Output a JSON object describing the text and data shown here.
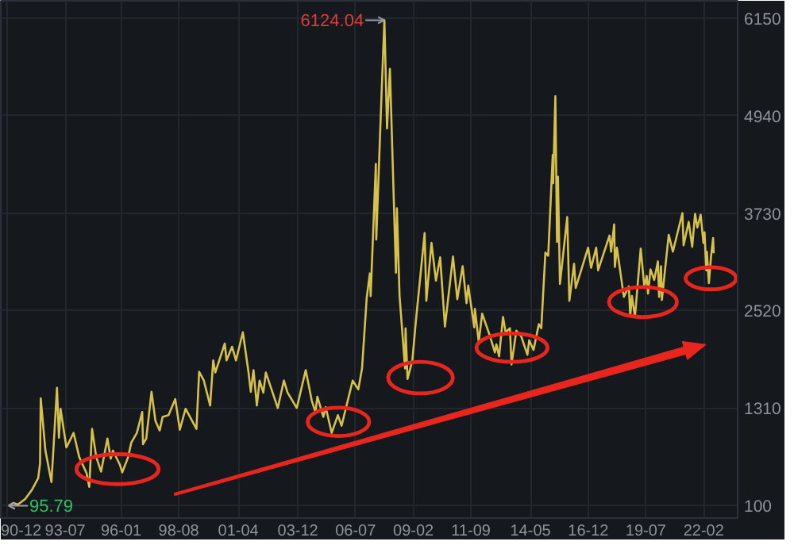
{
  "chart_data": {
    "type": "line",
    "color": "#d6c24a",
    "x": [
      "1990-12-19",
      "1991-03-01",
      "1991-05-17",
      "1991-09-15",
      "1991-12-31",
      "1992-04-15",
      "1992-05-15",
      "1992-05-26",
      "1992-07-10",
      "1992-08-11",
      "1992-11-17",
      "1992-12-20",
      "1993-02-16",
      "1993-03-20",
      "1993-04-15",
      "1993-07-20",
      "1993-11-15",
      "1994-02-15",
      "1994-06-15",
      "1994-07-29",
      "1994-09-13",
      "1994-11-20",
      "1995-02-07",
      "1995-05-22",
      "1995-07-15",
      "1995-08-20",
      "1995-12-15",
      "1996-01-19",
      "1996-04-25",
      "1996-06-15",
      "1996-09-15",
      "1996-12-11",
      "1996-12-24",
      "1997-02-15",
      "1997-05-12",
      "1997-07-15",
      "1997-09-23",
      "1997-11-10",
      "1998-02-15",
      "1998-06-04",
      "1998-08-18",
      "1998-11-20",
      "1999-05-17",
      "1999-06-30",
      "1999-09-15",
      "1999-12-27",
      "2000-02-15",
      "2000-03-20",
      "2000-08-22",
      "2000-09-20",
      "2000-12-20",
      "2001-02-22",
      "2001-06-14",
      "2001-09-15",
      "2001-10-22",
      "2001-12-05",
      "2002-01-29",
      "2002-03-15",
      "2002-05-15",
      "2002-06-25",
      "2003-01-06",
      "2003-04-16",
      "2003-06-15",
      "2003-11-13",
      "2004-04-07",
      "2004-07-15",
      "2004-09-13",
      "2004-10-15",
      "2005-01-20",
      "2005-02-28",
      "2005-06-06",
      "2005-09-15",
      "2005-11-15",
      "2006-05-15",
      "2006-08-15",
      "2006-10-15",
      "2006-12-31",
      "2007-02-20",
      "2007-03-05",
      "2007-05-29",
      "2007-06-05",
      "2007-08-30",
      "2007-10-16",
      "2007-11-28",
      "2008-01-14",
      "2008-04-22",
      "2008-05-07",
      "2008-06-20",
      "2008-09-18",
      "2008-09-26",
      "2008-10-28",
      "2009-01-15",
      "2009-03-15",
      "2009-08-04",
      "2009-09-01",
      "2009-11-24",
      "2010-02-05",
      "2010-04-15",
      "2010-07-02",
      "2010-11-11",
      "2011-01-20",
      "2011-04-18",
      "2011-06-20",
      "2011-07-18",
      "2011-10-24",
      "2011-11-04",
      "2012-01-06",
      "2012-03-02",
      "2012-06-30",
      "2012-09-26",
      "2012-10-20",
      "2012-12-04",
      "2013-02-06",
      "2013-03-20",
      "2013-05-30",
      "2013-06-25",
      "2013-09-12",
      "2013-11-30",
      "2014-03-12",
      "2014-04-10",
      "2014-06-20",
      "2014-09-15",
      "2014-10-25",
      "2014-12-31",
      "2015-02-15",
      "2015-04-30",
      "2015-05-07",
      "2015-06-12",
      "2015-07-09",
      "2015-07-24",
      "2015-08-26",
      "2015-12-23",
      "2016-01-27",
      "2016-04-13",
      "2016-05-10",
      "2016-11-29",
      "2017-01-16",
      "2017-04-10",
      "2017-05-11",
      "2017-11-14",
      "2017-12-10",
      "2018-01-29",
      "2018-02-09",
      "2018-03-15",
      "2018-07-06",
      "2018-09-26",
      "2018-10-19",
      "2018-11-15",
      "2019-01-04",
      "2019-04-08",
      "2019-06-05",
      "2019-07-15",
      "2019-08-06",
      "2019-09-15",
      "2019-11-15",
      "2020-01-14",
      "2020-02-03",
      "2020-03-05",
      "2020-03-19",
      "2020-07-09",
      "2020-09-15",
      "2021-02-18",
      "2021-03-09",
      "2021-06-01",
      "2021-07-28",
      "2021-09-13",
      "2021-10-20",
      "2021-12-13",
      "2022-01-28",
      "2022-02-15",
      "2022-03-15",
      "2022-03-25",
      "2022-04-27",
      "2022-06-01",
      "2022-07-05",
      "2022-07-15"
    ],
    "values": [
      95.79,
      130,
      110,
      180,
      290,
      440,
      620,
      1430,
      1050,
      780,
      390,
      800,
      1560,
      940,
      1300,
      820,
      1000,
      700,
      500,
      330,
      1050,
      700,
      520,
      930,
      680,
      780,
      600,
      510,
      700,
      880,
      1000,
      1260,
      860,
      930,
      1510,
      1150,
      1030,
      1200,
      1220,
      1420,
      1040,
      1300,
      1050,
      1760,
      1650,
      1340,
      1900,
      1750,
      2110,
      1900,
      2070,
      1900,
      2250,
      1750,
      1510,
      1780,
      1340,
      1650,
      1500,
      1750,
      1310,
      1650,
      1500,
      1310,
      1780,
      1400,
      1260,
      1450,
      1200,
      1320,
      1000,
      1220,
      1090,
      1650,
      1540,
      1800,
      2680,
      2980,
      2700,
      4340,
      3400,
      5200,
      6124.04,
      4780,
      5520,
      2990,
      3790,
      2700,
      1800,
      2300,
      1670,
      1900,
      2400,
      3480,
      2640,
      3360,
      2890,
      3180,
      2320,
      3190,
      2660,
      3070,
      2610,
      2830,
      2310,
      2540,
      2130,
      2480,
      2220,
      2000,
      2100,
      1950,
      2440,
      2250,
      2300,
      1850,
      2270,
      2200,
      1970,
      2150,
      2030,
      2350,
      2300,
      3240,
      3200,
      4450,
      4100,
      5180,
      3370,
      4180,
      2850,
      3680,
      2640,
      3100,
      2800,
      3300,
      3050,
      3300,
      3020,
      3450,
      3250,
      3590,
      3060,
      3300,
      2690,
      2820,
      2450,
      2700,
      2440,
      3290,
      2820,
      2950,
      2730,
      3030,
      2900,
      3130,
      2690,
      3070,
      2650,
      3460,
      3250,
      3730,
      3330,
      3620,
      3310,
      3720,
      3550,
      3710,
      3360,
      3490,
      3020,
      3250,
      2860,
      3190,
      3420,
      3230
    ],
    "xlim": [
      "1990-08-12",
      "2023-08-10"
    ],
    "ylim": [
      -57,
      6365
    ],
    "xticks": [
      {
        "value": "1990-12",
        "label": "90-12"
      },
      {
        "value": "1993-07",
        "label": "93-07"
      },
      {
        "value": "1996-01",
        "label": "96-01"
      },
      {
        "value": "1998-08",
        "label": "98-08"
      },
      {
        "value": "2001-04",
        "label": "01-04"
      },
      {
        "value": "2003-12",
        "label": "03-12"
      },
      {
        "value": "2006-07",
        "label": "06-07"
      },
      {
        "value": "2009-02",
        "label": "09-02"
      },
      {
        "value": "2011-09",
        "label": "11-09"
      },
      {
        "value": "2014-05",
        "label": "14-05"
      },
      {
        "value": "2016-12",
        "label": "16-12"
      },
      {
        "value": "2019-07",
        "label": "19-07"
      },
      {
        "value": "2022-02",
        "label": "22-02"
      }
    ],
    "yticks": [
      100,
      1310,
      2520,
      3730,
      4940,
      6150
    ],
    "grid": true,
    "annotations": [
      {
        "text": "6124.04",
        "x": "2007-10-16",
        "y": 6124.04
      },
      {
        "text": "95.79",
        "x": "1990-12-19",
        "y": 95.79
      }
    ]
  }
}
